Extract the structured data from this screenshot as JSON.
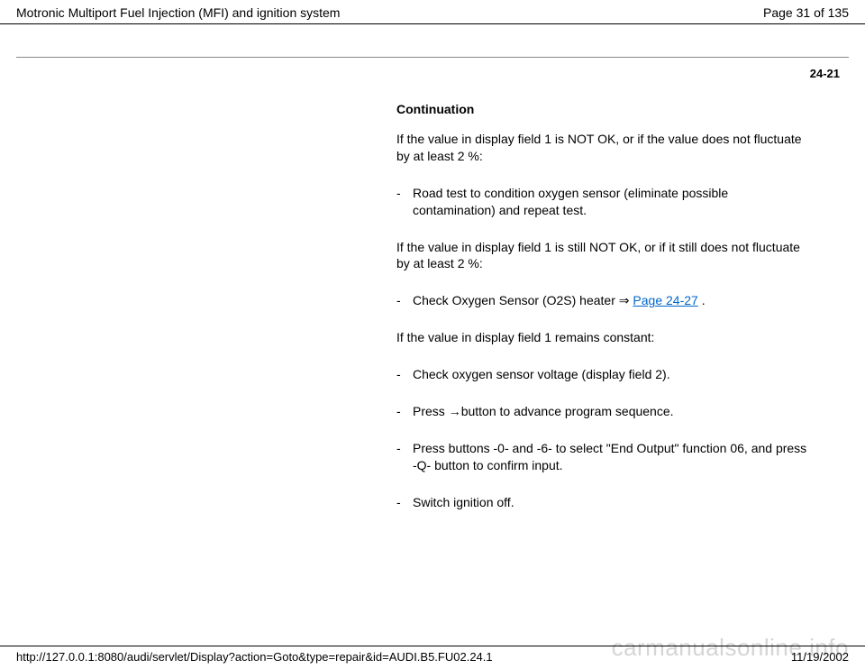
{
  "header": {
    "title": "Motronic Multiport Fuel Injection (MFI) and ignition system",
    "page_label": "Page 31 of 135"
  },
  "section_number": "24-21",
  "content": {
    "heading": "Continuation",
    "para1": "If the value in display field 1 is NOT OK, or if the value does not fluctuate by at least 2 %:",
    "bullet1": "Road test to condition oxygen sensor (eliminate possible contamination) and repeat test.",
    "para2": "If the value in display field 1 is still NOT OK, or if it still does not fluctuate by at least 2 %:",
    "bullet2_prefix": "Check Oxygen Sensor (O2S) heater ",
    "bullet2_link": "Page 24-27",
    "bullet2_suffix": " .",
    "para3": "If the value in display field 1 remains constant:",
    "bullet3": "Check oxygen sensor voltage (display field 2).",
    "bullet4_prefix": "Press ",
    "bullet4_rest": "button to advance program sequence.",
    "bullet5": "Press buttons -0- and -6- to select \"End Output\" function 06, and press -Q- button to confirm input.",
    "bullet6": "Switch ignition off."
  },
  "footer": {
    "url": "http://127.0.0.1:8080/audi/servlet/Display?action=Goto&type=repair&id=AUDI.B5.FU02.24.1",
    "date": "11/19/2002"
  },
  "watermark": "carmanualsonline.info",
  "dash": "-",
  "arrow_glyph": "⇒",
  "right_arrow": "→"
}
